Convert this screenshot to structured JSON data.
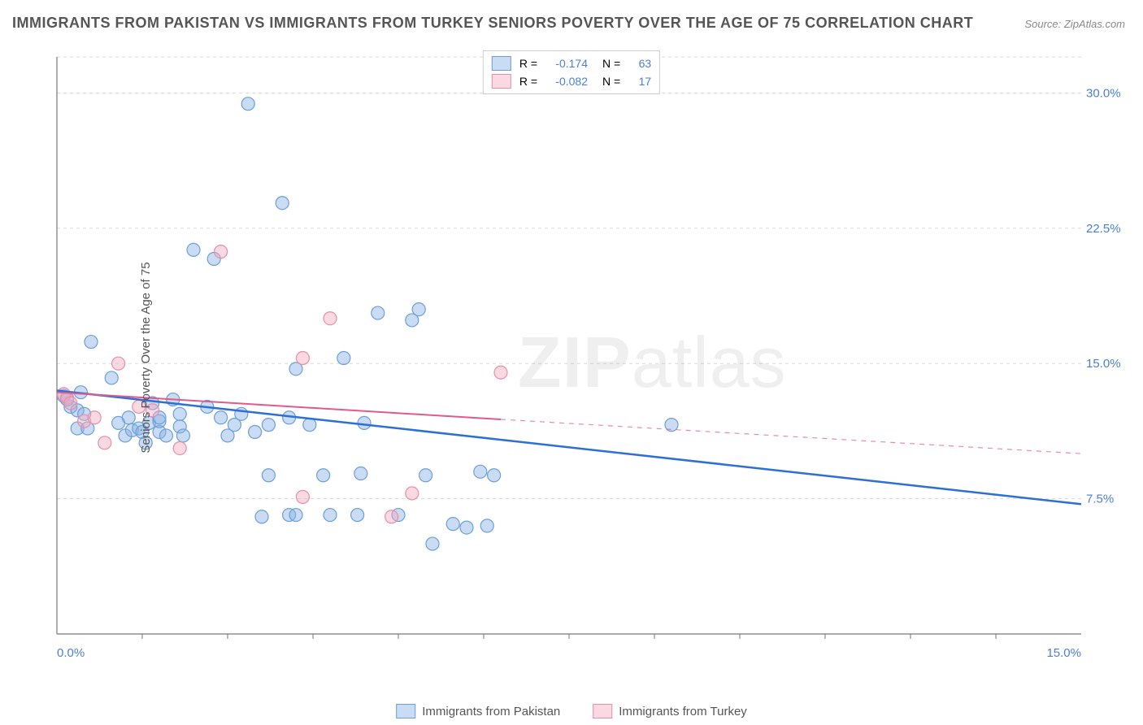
{
  "title": "IMMIGRANTS FROM PAKISTAN VS IMMIGRANTS FROM TURKEY SENIORS POVERTY OVER THE AGE OF 75 CORRELATION CHART",
  "source": "Source: ZipAtlas.com",
  "y_axis_label": "Seniors Poverty Over the Age of 75",
  "watermark_bold": "ZIP",
  "watermark_light": "atlas",
  "chart": {
    "type": "scatter",
    "xlim": [
      0,
      15
    ],
    "ylim": [
      0,
      32
    ],
    "x_ticks": [
      0,
      15
    ],
    "x_tick_labels": [
      "0.0%",
      "15.0%"
    ],
    "y_ticks": [
      7.5,
      15.0,
      22.5,
      30.0
    ],
    "y_tick_labels": [
      "7.5%",
      "15.0%",
      "22.5%",
      "30.0%"
    ],
    "grid_color": "#d9d9d9",
    "axis_color": "#777",
    "background_color": "#ffffff",
    "marker_radius": 8,
    "series": [
      {
        "name": "Immigrants from Pakistan",
        "fill": "rgba(137,178,228,0.45)",
        "stroke": "#6b9fd8",
        "trend_color": "#2c6fd6",
        "trend_width": 2.5,
        "trend": {
          "x1": 0,
          "y1": 13.5,
          "x2": 15,
          "y2": 7.2
        },
        "R": "-0.174",
        "N": "63",
        "points": [
          [
            0.1,
            13.2
          ],
          [
            0.2,
            12.6
          ],
          [
            0.15,
            13.0
          ],
          [
            0.3,
            12.4
          ],
          [
            0.35,
            13.4
          ],
          [
            0.3,
            11.4
          ],
          [
            0.4,
            12.2
          ],
          [
            0.45,
            11.4
          ],
          [
            0.5,
            16.2
          ],
          [
            0.8,
            14.2
          ],
          [
            0.9,
            11.7
          ],
          [
            1.0,
            11.0
          ],
          [
            1.05,
            12.0
          ],
          [
            1.1,
            11.3
          ],
          [
            1.2,
            11.4
          ],
          [
            1.25,
            11.2
          ],
          [
            1.3,
            10.6
          ],
          [
            1.35,
            11.7
          ],
          [
            1.4,
            12.8
          ],
          [
            1.5,
            11.2
          ],
          [
            1.5,
            11.8
          ],
          [
            1.5,
            12.0
          ],
          [
            1.6,
            11.0
          ],
          [
            1.7,
            13.0
          ],
          [
            1.8,
            12.2
          ],
          [
            1.8,
            11.5
          ],
          [
            1.85,
            11.0
          ],
          [
            2.0,
            21.3
          ],
          [
            2.2,
            12.6
          ],
          [
            2.3,
            20.8
          ],
          [
            2.4,
            12.0
          ],
          [
            2.5,
            11.0
          ],
          [
            2.6,
            11.6
          ],
          [
            2.7,
            12.2
          ],
          [
            2.8,
            29.4
          ],
          [
            2.9,
            11.2
          ],
          [
            3.0,
            6.5
          ],
          [
            3.1,
            8.8
          ],
          [
            3.1,
            11.6
          ],
          [
            3.3,
            23.9
          ],
          [
            3.4,
            6.6
          ],
          [
            3.4,
            12.0
          ],
          [
            3.5,
            6.6
          ],
          [
            3.5,
            14.7
          ],
          [
            3.7,
            11.6
          ],
          [
            3.9,
            8.8
          ],
          [
            4.0,
            6.6
          ],
          [
            4.2,
            15.3
          ],
          [
            4.4,
            6.6
          ],
          [
            4.45,
            8.9
          ],
          [
            4.5,
            11.7
          ],
          [
            4.7,
            17.8
          ],
          [
            5.0,
            6.6
          ],
          [
            5.2,
            17.4
          ],
          [
            5.3,
            18.0
          ],
          [
            5.4,
            8.8
          ],
          [
            5.5,
            5.0
          ],
          [
            5.8,
            6.1
          ],
          [
            6.0,
            5.9
          ],
          [
            6.2,
            9.0
          ],
          [
            6.3,
            6.0
          ],
          [
            6.4,
            8.8
          ],
          [
            9.0,
            11.6
          ]
        ]
      },
      {
        "name": "Immigrants from Turkey",
        "fill": "rgba(244,170,190,0.45)",
        "stroke": "#e58fa8",
        "trend_color": "#e05a8a",
        "trend_width": 2,
        "trend": {
          "x1": 0,
          "y1": 13.4,
          "x2": 6.5,
          "y2": 11.9
        },
        "trend_dash_ext": {
          "x1": 6.5,
          "y1": 11.9,
          "x2": 15,
          "y2": 10.0
        },
        "R": "-0.082",
        "N": "17",
        "points": [
          [
            0.1,
            13.3
          ],
          [
            0.15,
            13.1
          ],
          [
            0.2,
            12.8
          ],
          [
            0.4,
            11.8
          ],
          [
            0.55,
            12.0
          ],
          [
            0.7,
            10.6
          ],
          [
            0.9,
            15.0
          ],
          [
            1.2,
            12.6
          ],
          [
            1.4,
            12.4
          ],
          [
            1.8,
            10.3
          ],
          [
            2.4,
            21.2
          ],
          [
            3.6,
            7.6
          ],
          [
            3.6,
            15.3
          ],
          [
            4.0,
            17.5
          ],
          [
            4.9,
            6.5
          ],
          [
            5.2,
            7.8
          ],
          [
            6.5,
            14.5
          ]
        ]
      }
    ]
  },
  "legend_top": {
    "R_label": "R =",
    "N_label": "N ="
  },
  "x_minor_ticks": [
    1.25,
    2.5,
    3.75,
    5.0,
    6.25,
    7.5,
    8.75,
    10.0,
    11.25,
    12.5,
    13.75
  ]
}
